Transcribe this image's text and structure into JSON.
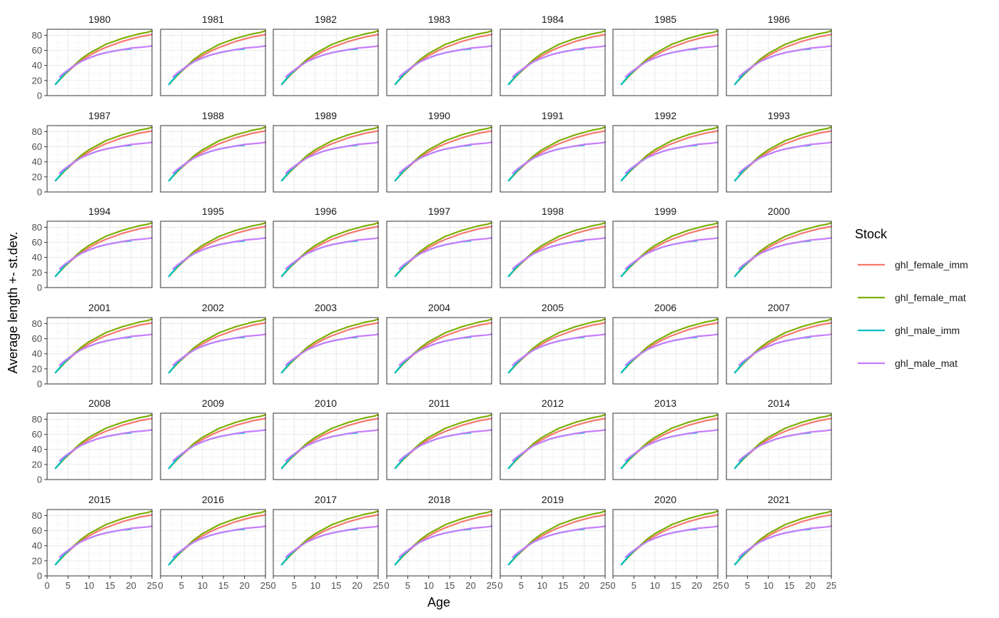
{
  "chart_data": {
    "type": "line",
    "facet_by": "year",
    "years": [
      "1980",
      "1981",
      "1982",
      "1983",
      "1984",
      "1985",
      "1986",
      "1987",
      "1988",
      "1989",
      "1990",
      "1991",
      "1992",
      "1993",
      "1994",
      "1995",
      "1996",
      "1997",
      "1998",
      "1999",
      "2000",
      "2001",
      "2002",
      "2003",
      "2004",
      "2005",
      "2006",
      "2007",
      "2008",
      "2009",
      "2010",
      "2011",
      "2012",
      "2013",
      "2014",
      "2015",
      "2016",
      "2017",
      "2018",
      "2019",
      "2020",
      "2021"
    ],
    "xlabel": "Age",
    "ylabel": "Average length +- st.dev.",
    "xlim": [
      0,
      25
    ],
    "ylim": [
      0,
      88
    ],
    "x_ticks": [
      "0",
      "5",
      "10",
      "15",
      "20",
      "25"
    ],
    "y_ticks": [
      "0",
      "20",
      "40",
      "60",
      "80"
    ],
    "grid": true,
    "legend": {
      "title": "Stock",
      "position": "right",
      "entries": [
        "ghl_female_imm",
        "ghl_female_mat",
        "ghl_male_imm",
        "ghl_male_mat"
      ]
    },
    "series": [
      {
        "name": "ghl_female_imm",
        "color": "#F8766D",
        "x": [
          2,
          4,
          6,
          8,
          10,
          12,
          14,
          16,
          18,
          20,
          22,
          24,
          25
        ],
        "values": [
          15,
          27,
          37,
          46,
          53,
          59,
          64,
          68,
          72,
          75,
          78,
          80,
          81
        ]
      },
      {
        "name": "ghl_female_mat",
        "color": "#7CAE00",
        "x": [
          2,
          4,
          6,
          8,
          10,
          12,
          14,
          16,
          18,
          20,
          22,
          24,
          25
        ],
        "values": [
          15,
          27,
          38,
          48,
          56,
          62,
          68,
          72,
          76,
          79,
          82,
          84,
          86
        ]
      },
      {
        "name": "ghl_male_imm",
        "color": "#00BFC4",
        "x": [
          2,
          4,
          6,
          8,
          10,
          12,
          14,
          16,
          18,
          20
        ],
        "values": [
          15,
          28,
          38,
          45,
          50,
          54,
          57,
          59,
          61,
          62
        ]
      },
      {
        "name": "ghl_male_mat",
        "color": "#C77CFF",
        "x": [
          3,
          4,
          6,
          8,
          10,
          12,
          14,
          16,
          18,
          20,
          22,
          24,
          25
        ],
        "values": [
          25,
          30,
          38,
          45,
          50,
          54,
          57,
          59,
          61,
          63,
          64,
          65,
          66
        ]
      }
    ]
  }
}
